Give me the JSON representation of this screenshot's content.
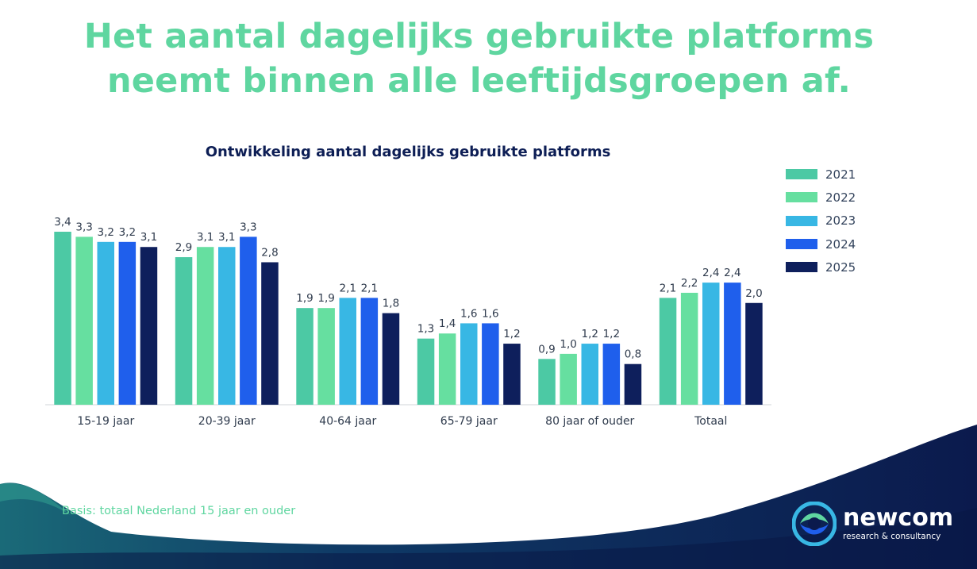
{
  "headline": "Het aantal dagelijks gebruikte platforms neemt binnen alle leeftijdsgroepen af.",
  "basis": "Basis: totaal Nederland 15 jaar en ouder",
  "logo": {
    "name": "newcom",
    "tagline": "research & consultancy"
  },
  "colors": {
    "headline": "#5fd6a0",
    "title": "#0d1e55",
    "wave_dark": "#0b1a4d",
    "wave_teal": "#1a6a78"
  },
  "chart_data": {
    "type": "bar",
    "title": "Ontwikkeling aantal dagelijks gebruikte platforms",
    "xlabel": "",
    "ylabel": "",
    "ylim": [
      0,
      3.6
    ],
    "grid": false,
    "legend_position": "right",
    "categories": [
      "15-19 jaar",
      "20-39 jaar",
      "40-64 jaar",
      "65-79 jaar",
      "80 jaar of ouder",
      "Totaal"
    ],
    "series": [
      {
        "name": "2021",
        "color": "#4cc9a4",
        "values": [
          3.4,
          2.9,
          1.9,
          1.3,
          0.9,
          2.1
        ],
        "labels": [
          "3,4",
          "2,9",
          "1,9",
          "1,3",
          "0,9",
          "2,1"
        ]
      },
      {
        "name": "2022",
        "color": "#66dfa0",
        "values": [
          3.3,
          3.1,
          1.9,
          1.4,
          1.0,
          2.2
        ],
        "labels": [
          "3,3",
          "3,1",
          "1,9",
          "1,4",
          "1,0",
          "2,2"
        ]
      },
      {
        "name": "2023",
        "color": "#38b7e4",
        "values": [
          3.2,
          3.1,
          2.1,
          1.6,
          1.2,
          2.4
        ],
        "labels": [
          "3,2",
          "3,1",
          "2,1",
          "1,6",
          "1,2",
          "2,4"
        ]
      },
      {
        "name": "2024",
        "color": "#1f5fec",
        "values": [
          3.2,
          3.3,
          2.1,
          1.6,
          1.2,
          2.4
        ],
        "labels": [
          "3,2",
          "3,3",
          "2,1",
          "1,6",
          "1,2",
          "2,4"
        ]
      },
      {
        "name": "2025",
        "color": "#0e1f5c",
        "values": [
          3.1,
          2.8,
          1.8,
          1.2,
          0.8,
          2.0
        ],
        "labels": [
          "3,1",
          "2,8",
          "1,8",
          "1,2",
          "0,8",
          "2,0"
        ]
      }
    ]
  }
}
